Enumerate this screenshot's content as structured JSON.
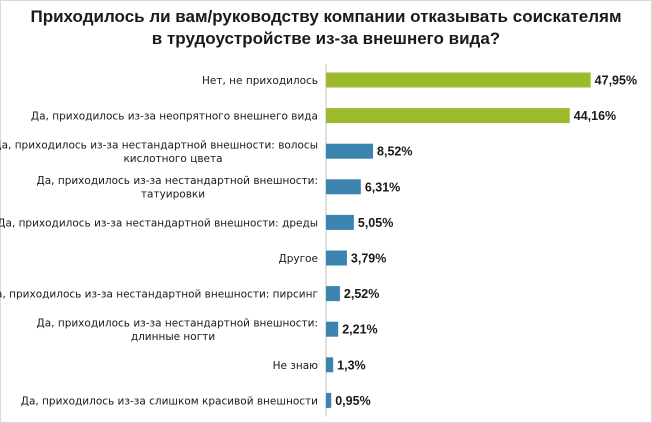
{
  "chart_data": {
    "type": "bar",
    "orientation": "horizontal",
    "title": "Приходилось ли вам/руководству компании отказывать соискателям в трудоустройстве из-за внешнего вида?",
    "categories": [
      [
        "Нет, не приходилось"
      ],
      [
        "Да, приходилось из-за неопрятного  внешнего вида"
      ],
      [
        "Да, приходилось из-за нестандартной внешности: волосы",
        "кислотного цвета"
      ],
      [
        "Да, приходилось из-за нестандартной внешности:",
        "татуировки"
      ],
      [
        "Да, приходилось из-за нестандартной внешности: дреды"
      ],
      [
        "Другое"
      ],
      [
        "Да, приходилось из-за нестандартной  внешности: пирсинг"
      ],
      [
        "Да, приходилось из-за нестандартной внешности:",
        "длинные ногти"
      ],
      [
        "Не знаю"
      ],
      [
        "Да, приходилось из-за слишком красивой внешности"
      ]
    ],
    "values": [
      47.95,
      44.16,
      8.52,
      6.31,
      5.05,
      3.79,
      2.52,
      2.21,
      1.3,
      0.95
    ],
    "value_labels": [
      "47,95%",
      "44,16%",
      "8,52%",
      "6,31%",
      "5,05%",
      "3,79%",
      "2,52%",
      "2,21%",
      "1,3%",
      "0,95%"
    ],
    "colors": [
      "#9bbb2d",
      "#9bbb2d",
      "#3b84b0",
      "#3b84b0",
      "#3b84b0",
      "#3b84b0",
      "#3b84b0",
      "#3b84b0",
      "#3b84b0",
      "#3b84b0"
    ],
    "xlim": [
      0,
      50
    ],
    "grid": false,
    "legend": "none"
  }
}
